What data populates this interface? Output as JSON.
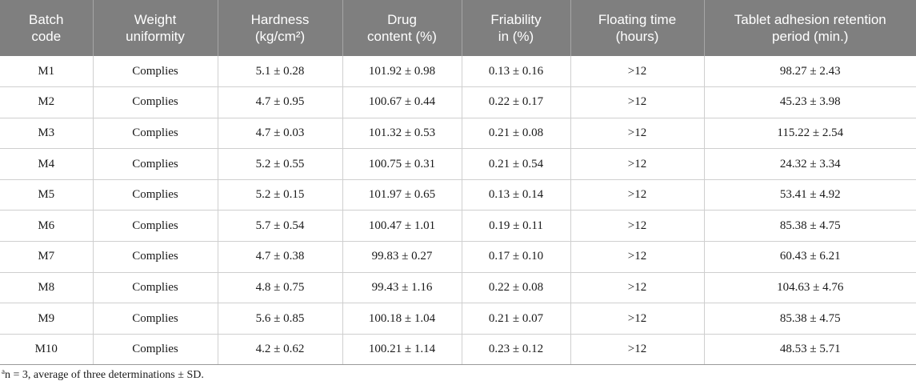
{
  "table": {
    "headers": [
      [
        "Batch",
        "code"
      ],
      [
        "Weight",
        "uniformity"
      ],
      [
        "Hardness",
        "(kg/cm²)"
      ],
      [
        "Drug",
        "content (%)"
      ],
      [
        "Friability",
        "in (%)"
      ],
      [
        "Floating time",
        "(hours)"
      ],
      [
        "Tablet adhesion retention",
        "period (min.)"
      ]
    ],
    "rows": [
      [
        "M1",
        "Complies",
        "5.1 ± 0.28",
        "101.92 ± 0.98",
        "0.13 ± 0.16",
        ">12",
        "98.27 ± 2.43"
      ],
      [
        "M2",
        "Complies",
        "4.7 ± 0.95",
        "100.67 ± 0.44",
        "0.22 ± 0.17",
        ">12",
        "45.23 ± 3.98"
      ],
      [
        "M3",
        "Complies",
        "4.7 ± 0.03",
        "101.32 ± 0.53",
        "0.21 ± 0.08",
        ">12",
        "115.22 ± 2.54"
      ],
      [
        "M4",
        "Complies",
        "5.2 ± 0.55",
        "100.75 ± 0.31",
        "0.21 ± 0.54",
        ">12",
        "24.32 ± 3.34"
      ],
      [
        "M5",
        "Complies",
        "5.2 ± 0.15",
        "101.97 ± 0.65",
        "0.13 ± 0.14",
        ">12",
        "53.41 ± 4.92"
      ],
      [
        "M6",
        "Complies",
        "5.7 ± 0.54",
        "100.47 ± 1.01",
        "0.19 ± 0.11",
        ">12",
        "85.38 ± 4.75"
      ],
      [
        "M7",
        "Complies",
        "4.7 ± 0.38",
        "99.83 ± 0.27",
        "0.17 ± 0.10",
        ">12",
        "60.43 ± 6.21"
      ],
      [
        "M8",
        "Complies",
        "4.8 ± 0.75",
        "99.43 ± 1.16",
        "0.22 ± 0.08",
        ">12",
        "104.63 ± 4.76"
      ],
      [
        "M9",
        "Complies",
        "5.6 ± 0.85",
        "100.18 ± 1.04",
        "0.21 ± 0.07",
        ">12",
        "85.38 ± 4.75"
      ],
      [
        "M10",
        "Complies",
        "4.2 ± 0.62",
        "100.21 ± 1.14",
        "0.23 ± 0.12",
        ">12",
        "48.53 ± 5.71"
      ]
    ]
  },
  "footnote": {
    "marker": "a",
    "text": "n = 3, average of three determinations ± SD."
  },
  "colors": {
    "header_background": "#7f7f7f",
    "header_text": "#ffffff",
    "grid_lines": "#cfcfcf"
  }
}
